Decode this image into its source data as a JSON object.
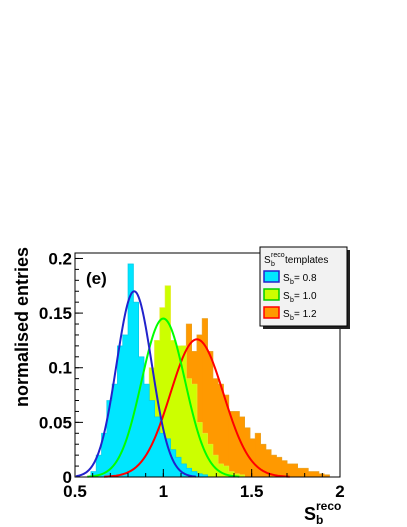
{
  "chart_data": {
    "type": "bar",
    "panel_label": "(e)",
    "ylabel": "normalised entries",
    "xlabel": {
      "main": "S",
      "sub": "b",
      "sup": "reco"
    },
    "xlim": [
      0.5,
      2.0
    ],
    "ylim": [
      0,
      0.205
    ],
    "xticks": [
      "0.5",
      "1",
      "1.5",
      "2"
    ],
    "yticks": [
      "0",
      "0.05",
      "0.1",
      "0.15",
      "0.2"
    ],
    "ytick_values": [
      0,
      0.05,
      0.1,
      0.15,
      0.2
    ],
    "xtick_values": [
      0.5,
      1.0,
      1.5,
      2.0
    ],
    "bin_edges": [
      0.5,
      0.53,
      0.56,
      0.59,
      0.62,
      0.65,
      0.68,
      0.71,
      0.74,
      0.77,
      0.8,
      0.83,
      0.86,
      0.89,
      0.92,
      0.95,
      0.98,
      1.01,
      1.04,
      1.07,
      1.1,
      1.13,
      1.16,
      1.19,
      1.22,
      1.25,
      1.28,
      1.31,
      1.34,
      1.37,
      1.4,
      1.43,
      1.46,
      1.49,
      1.52,
      1.55,
      1.58,
      1.61,
      1.64,
      1.67,
      1.7,
      1.73,
      1.76,
      1.79,
      1.82,
      1.85,
      1.88,
      1.91,
      1.94,
      1.97,
      2.0
    ],
    "legend": {
      "title": {
        "main": "S",
        "sub": "b",
        "sup": "reco",
        "rest": " templates"
      },
      "position": "top-right",
      "entries": [
        {
          "main": "S",
          "sub": "b",
          "rest": " = 0.8"
        },
        {
          "main": "S",
          "sub": "b",
          "rest": " = 1.0"
        },
        {
          "main": "S",
          "sub": "b",
          "rest": " = 1.2"
        }
      ]
    },
    "series": [
      {
        "fill": "#ff9900",
        "line": "#ff0000",
        "outline": "#e6a020",
        "hist": [
          0,
          0,
          0,
          0,
          0,
          0,
          0,
          0,
          0,
          0,
          0,
          0,
          0,
          0.003,
          0.008,
          0.015,
          0.03,
          0.055,
          0.078,
          0.1,
          0.12,
          0.14,
          0.115,
          0.13,
          0.145,
          0.115,
          0.09,
          0.085,
          0.075,
          0.06,
          0.06,
          0.055,
          0.045,
          0.035,
          0.04,
          0.03,
          0.025,
          0.02,
          0.018,
          0.015,
          0.012,
          0.012,
          0.008,
          0.008,
          0.005,
          0.005,
          0.003,
          0.002,
          0,
          0
        ],
        "fit": {
          "mean": 1.19,
          "sigma": 0.15,
          "peak": 0.126
        }
      },
      {
        "fill": "#ccff00",
        "line": "#00ff00",
        "outline": "#e8e830",
        "hist": [
          0,
          0,
          0,
          0,
          0,
          0,
          0,
          0,
          0.005,
          0.015,
          0.03,
          0.048,
          0.07,
          0.083,
          0.1,
          0.125,
          0.155,
          0.175,
          0.125,
          0.12,
          0.12,
          0.09,
          0.085,
          0.05,
          0.04,
          0.03,
          0.02,
          0.012,
          0.01,
          0.005,
          0.003,
          0.002,
          0,
          0,
          0,
          0,
          0,
          0,
          0,
          0,
          0,
          0,
          0,
          0,
          0,
          0,
          0,
          0,
          0,
          0
        ],
        "fit": {
          "mean": 1.0,
          "sigma": 0.123,
          "peak": 0.145
        }
      },
      {
        "fill": "#00e6ff",
        "line": "#2222cc",
        "outline": "#00c8e6",
        "hist": [
          0,
          0,
          0,
          0.005,
          0.02,
          0.04,
          0.07,
          0.085,
          0.12,
          0.13,
          0.195,
          0.16,
          0.11,
          0.085,
          0.07,
          0.055,
          0.04,
          0.035,
          0.025,
          0.018,
          0.012,
          0.008,
          0.005,
          0.003,
          0.002,
          0,
          0,
          0,
          0,
          0,
          0,
          0,
          0,
          0,
          0,
          0,
          0,
          0,
          0,
          0,
          0,
          0,
          0,
          0,
          0,
          0,
          0,
          0,
          0,
          0
        ],
        "fit": {
          "mean": 0.835,
          "sigma": 0.1,
          "peak": 0.17
        }
      }
    ],
    "legend_colors": [
      "#00e6ff",
      "#ccff00",
      "#ff9900"
    ],
    "legend_outline": [
      "#2222cc",
      "#00cc00",
      "#ff0000"
    ]
  }
}
